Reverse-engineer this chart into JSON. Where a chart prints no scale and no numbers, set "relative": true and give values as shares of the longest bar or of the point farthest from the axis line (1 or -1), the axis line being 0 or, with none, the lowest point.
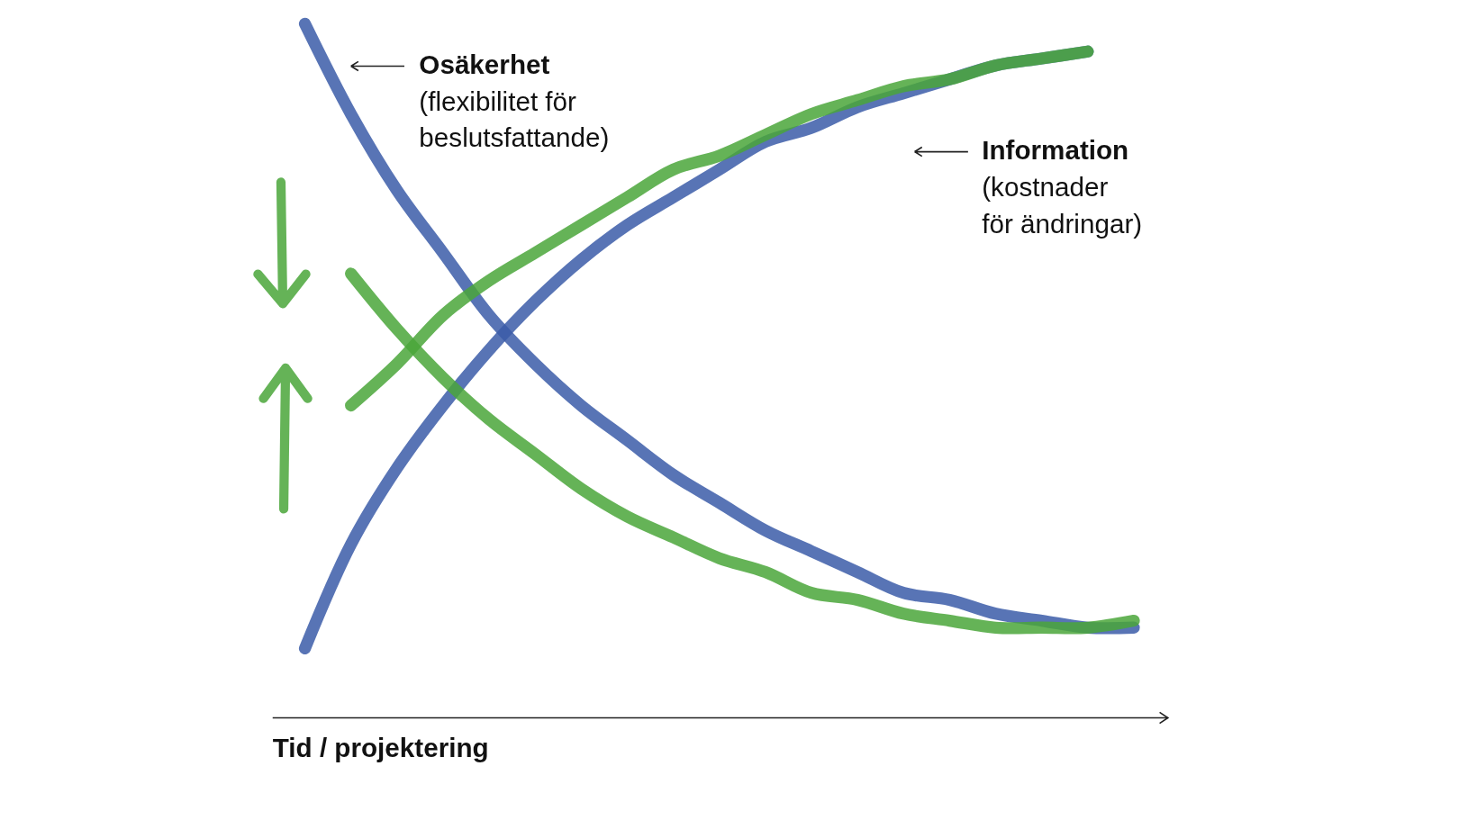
{
  "chart_data": {
    "type": "line",
    "relative": true,
    "xlabel": "Tid / projektering",
    "categories": [
      null,
      null,
      null,
      null,
      null,
      null,
      null,
      null,
      null,
      null,
      null,
      null,
      null,
      null,
      null,
      null,
      null,
      null,
      null
    ],
    "series": [
      {
        "color": "#3b5ca8",
        "values": [
          1.0,
          0.87,
          0.76,
          0.67,
          0.58,
          0.51,
          0.45,
          0.4,
          0.35,
          0.31,
          0.27,
          0.24,
          0.21,
          0.18,
          0.17,
          0.15,
          0.14,
          0.13,
          0.13
        ]
      },
      {
        "color": "#3b5ca8",
        "values": [
          0.1,
          0.25,
          0.36,
          0.45,
          0.53,
          0.6,
          0.66,
          0.71,
          0.75,
          0.79,
          0.83,
          0.85,
          0.88,
          0.9,
          0.92,
          0.94,
          0.95,
          0.96,
          null
        ]
      },
      {
        "color": "#4aa63a",
        "values": [
          null,
          0.64,
          0.56,
          0.49,
          0.43,
          0.38,
          0.33,
          0.29,
          0.26,
          0.23,
          0.21,
          0.18,
          0.17,
          0.15,
          0.14,
          0.13,
          0.13,
          0.13,
          0.14
        ]
      },
      {
        "color": "#4aa63a",
        "values": [
          null,
          0.45,
          0.51,
          0.58,
          0.63,
          0.67,
          0.71,
          0.75,
          0.79,
          0.81,
          0.84,
          0.87,
          0.89,
          0.91,
          0.92,
          0.94,
          0.95,
          0.96,
          null
        ]
      }
    ],
    "annotations": [
      "Osäkerhet\n(flexibilitet för\nbeslutsfattande)",
      "Information\n(kostnader\nför ändringar)"
    ],
    "grid": false,
    "line_style": "solid"
  }
}
